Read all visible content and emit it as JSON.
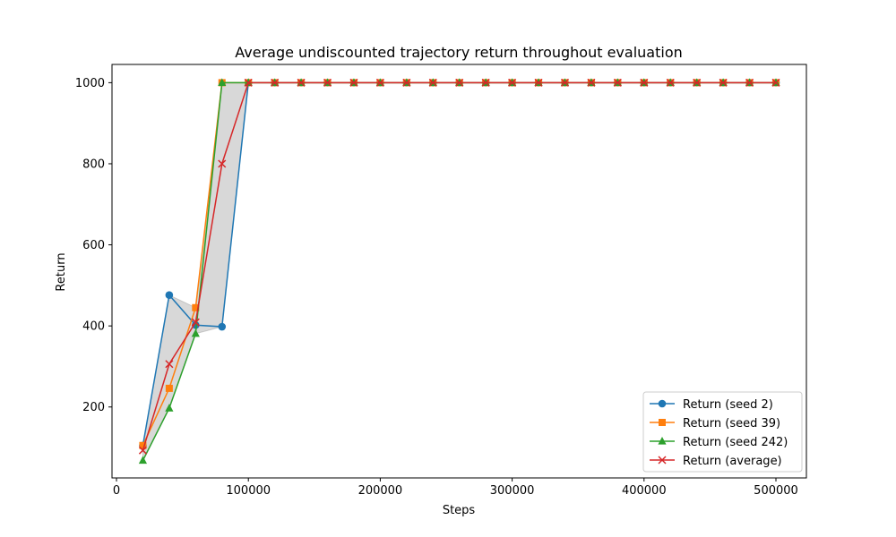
{
  "chart_data": {
    "type": "line",
    "title": "Average undiscounted trajectory return throughout evaluation",
    "xlabel": "Steps",
    "ylabel": "Return",
    "xlim": [
      0,
      500000
    ],
    "ylim": [
      25,
      1045
    ],
    "xticks": [
      0,
      100000,
      200000,
      300000,
      400000,
      500000
    ],
    "yticks": [
      200,
      400,
      600,
      800,
      1000
    ],
    "grid": false,
    "legend_position": "lower-right",
    "x": [
      20000,
      40000,
      60000,
      80000,
      100000,
      120000,
      140000,
      160000,
      180000,
      200000,
      220000,
      240000,
      260000,
      280000,
      300000,
      320000,
      340000,
      360000,
      380000,
      400000,
      420000,
      440000,
      460000,
      480000,
      500000
    ],
    "series": [
      {
        "name": "Return (seed 2)",
        "color": "#1f77b4",
        "marker": "circle",
        "values": [
          105,
          476,
          402,
          398,
          1000,
          1000,
          1000,
          1000,
          1000,
          1000,
          1000,
          1000,
          1000,
          1000,
          1000,
          1000,
          1000,
          1000,
          1000,
          1000,
          1000,
          1000,
          1000,
          1000,
          1000
        ]
      },
      {
        "name": "Return (seed 39)",
        "color": "#ff7f0e",
        "marker": "square",
        "values": [
          105,
          246,
          445,
          1000,
          1000,
          1000,
          1000,
          1000,
          1000,
          1000,
          1000,
          1000,
          1000,
          1000,
          1000,
          1000,
          1000,
          1000,
          1000,
          1000,
          1000,
          1000,
          1000,
          1000,
          1000
        ]
      },
      {
        "name": "Return (seed 242)",
        "color": "#2ca02c",
        "marker": "triangle",
        "values": [
          68,
          197,
          381,
          1000,
          1000,
          1000,
          1000,
          1000,
          1000,
          1000,
          1000,
          1000,
          1000,
          1000,
          1000,
          1000,
          1000,
          1000,
          1000,
          1000,
          1000,
          1000,
          1000,
          1000,
          1000
        ]
      },
      {
        "name": "Return (average)",
        "color": "#d62728",
        "marker": "x",
        "values": [
          93,
          306,
          409,
          800,
          1000,
          1000,
          1000,
          1000,
          1000,
          1000,
          1000,
          1000,
          1000,
          1000,
          1000,
          1000,
          1000,
          1000,
          1000,
          1000,
          1000,
          1000,
          1000,
          1000,
          1000
        ]
      }
    ],
    "band": {
      "color": "#7f7f7f",
      "opacity": 0.3
    }
  }
}
